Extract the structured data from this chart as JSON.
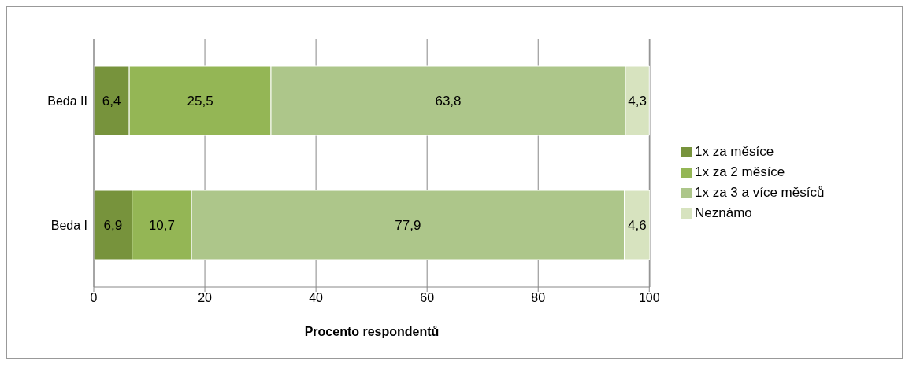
{
  "chart_data": {
    "type": "bar",
    "orientation": "horizontal",
    "stacked": true,
    "xlabel": "Procento respondentů",
    "categories": [
      "Beda II",
      "Beda I"
    ],
    "series": [
      {
        "name": "1x za měsíce",
        "color": "#77933c",
        "values": [
          6.4,
          6.9
        ],
        "value_labels": [
          "6,4",
          "6,9"
        ]
      },
      {
        "name": "1x za 2 měsíce",
        "color": "#94b655",
        "values": [
          25.5,
          10.7
        ],
        "value_labels": [
          "25,5",
          "10,7"
        ]
      },
      {
        "name": "1x za 3 a více měsíců",
        "color": "#adc68a",
        "values": [
          63.8,
          77.9
        ],
        "value_labels": [
          "63,8",
          "77,9"
        ]
      },
      {
        "name": "Neznámo",
        "color": "#d7e3bf",
        "values": [
          4.3,
          4.6
        ],
        "value_labels": [
          "4,3",
          "4,6"
        ]
      }
    ],
    "xlim": [
      0,
      100.1
    ],
    "xticks": [
      0,
      20,
      40,
      60,
      80,
      100
    ],
    "grid": "x",
    "legend": "right"
  }
}
